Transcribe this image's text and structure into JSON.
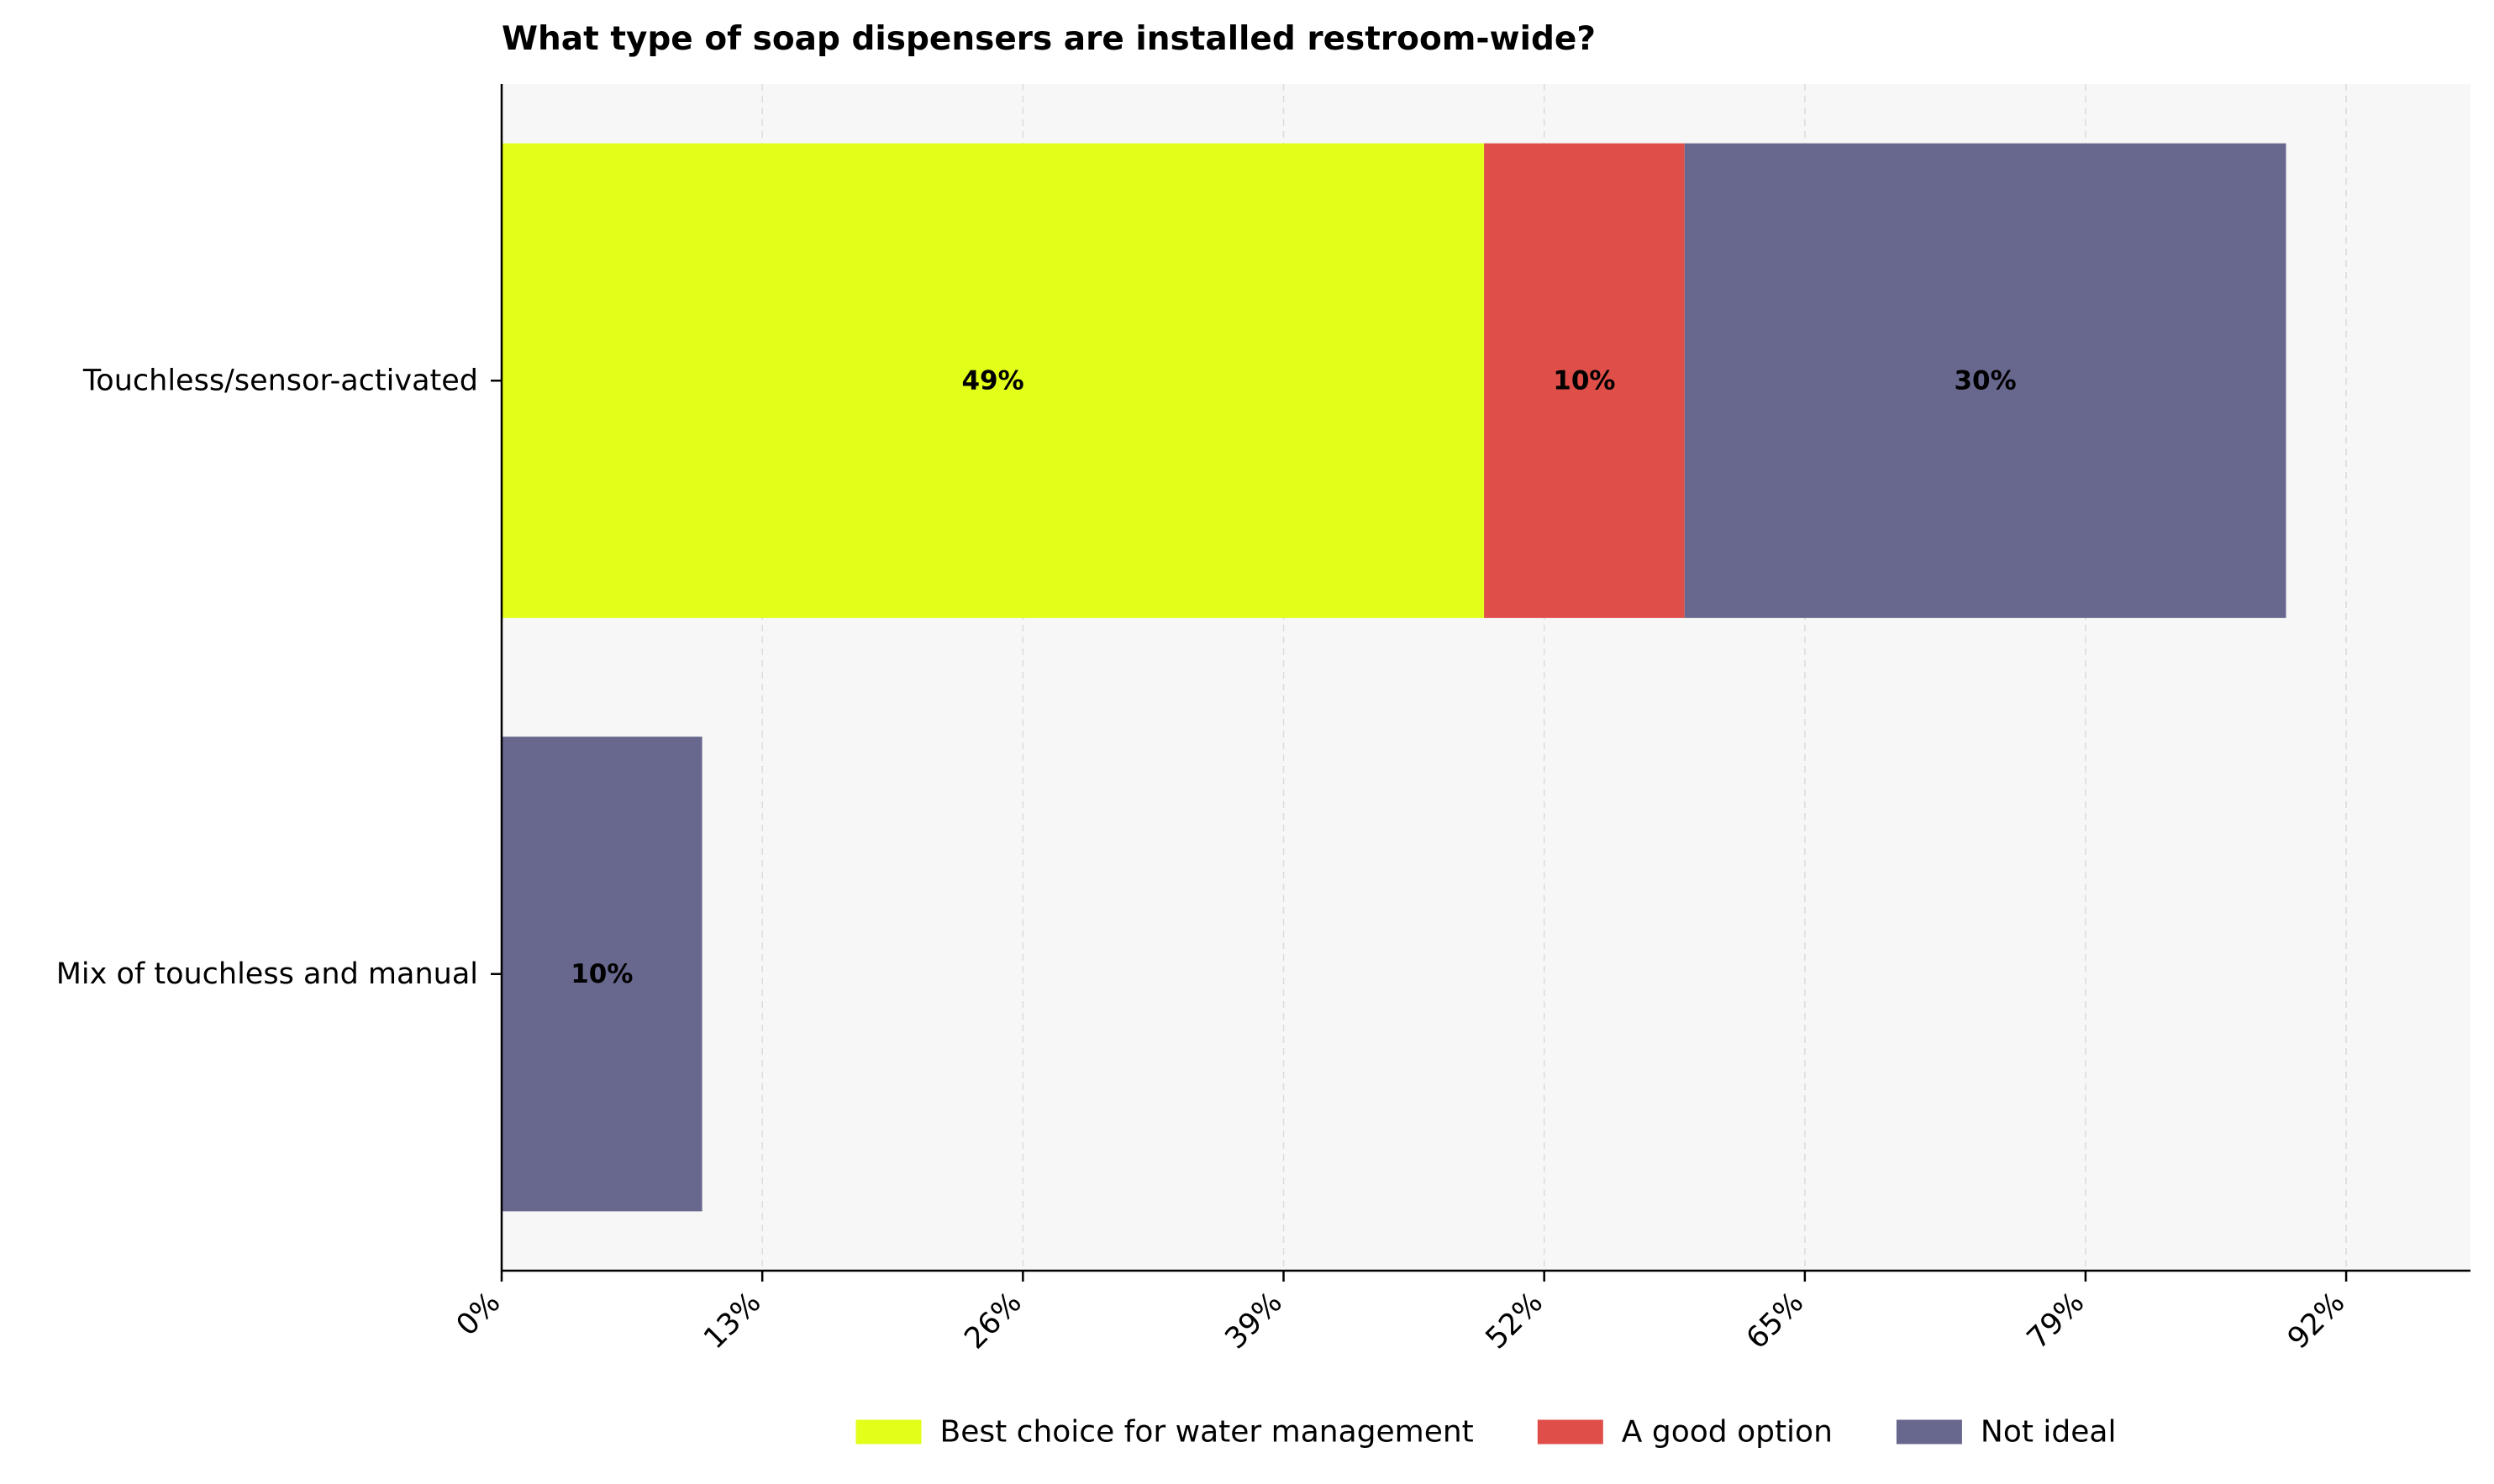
{
  "chart_data": {
    "type": "bar",
    "orientation": "horizontal",
    "stacked": true,
    "title": "What type of soap dispensers are installed restroom-wide?",
    "xlabel": "",
    "ylabel": "",
    "categories": [
      "Touchless/sensor-activated",
      "Mix of touchless and manual"
    ],
    "series": [
      {
        "name": "Best choice for water management",
        "color": "#e2ff1a",
        "values": [
          49,
          0
        ]
      },
      {
        "name": "A good option",
        "color": "#df4e49",
        "values": [
          10,
          0
        ]
      },
      {
        "name": "Not ideal",
        "color": "#68688f",
        "values": [
          30,
          10
        ]
      }
    ],
    "data_labels": [
      [
        "49%",
        "10%",
        "30%"
      ],
      [
        "",
        "",
        "10%"
      ]
    ],
    "xlim": [
      0,
      98.2
    ],
    "xticks": [
      0,
      13,
      26,
      39,
      52,
      65,
      79,
      92
    ],
    "xtick_labels": [
      "0%",
      "13%",
      "26%",
      "39%",
      "52%",
      "65%",
      "79%",
      "92%"
    ],
    "grid": "x-dashed",
    "legend": "bottom-center",
    "plot_background": "#f7f7f7"
  }
}
